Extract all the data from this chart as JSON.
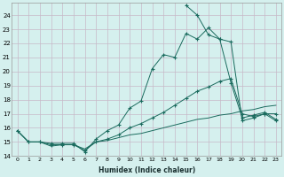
{
  "xlabel": "Humidex (Indice chaleur)",
  "xlim": [
    -0.5,
    23.5
  ],
  "ylim": [
    14,
    24.9
  ],
  "yticks": [
    14,
    15,
    16,
    17,
    18,
    19,
    20,
    21,
    22,
    23,
    24
  ],
  "xticks": [
    0,
    1,
    2,
    3,
    4,
    5,
    6,
    7,
    8,
    9,
    10,
    11,
    12,
    13,
    14,
    15,
    16,
    17,
    18,
    19,
    20,
    21,
    22,
    23
  ],
  "background_color": "#d5f0ee",
  "grid_color": "#c8b8c8",
  "line_color": "#1a6b5e",
  "lines": [
    {
      "x": [
        0,
        1,
        2,
        3,
        4,
        5,
        6,
        7,
        8,
        9,
        10,
        11,
        12,
        13,
        14,
        15,
        16,
        17,
        18,
        19,
        20,
        21,
        22,
        23
      ],
      "y": [
        15.8,
        15.0,
        15.0,
        14.7,
        14.8,
        14.8,
        14.5,
        15.0,
        15.1,
        15.3,
        15.5,
        15.6,
        15.8,
        16.0,
        16.2,
        16.4,
        16.6,
        16.7,
        16.9,
        17.0,
        17.2,
        17.3,
        17.5,
        17.6
      ],
      "has_marker": false
    },
    {
      "x": [
        0,
        1,
        2,
        3,
        4,
        5,
        6,
        7,
        8,
        9,
        10,
        11,
        12,
        13,
        14,
        15,
        16,
        17,
        18,
        19,
        20,
        21,
        22,
        23
      ],
      "y": [
        15.8,
        15.0,
        15.0,
        14.8,
        14.8,
        14.8,
        14.4,
        15.0,
        15.2,
        15.5,
        16.0,
        16.3,
        16.7,
        17.1,
        17.6,
        18.1,
        18.6,
        18.9,
        19.3,
        19.5,
        17.0,
        16.8,
        17.0,
        17.0
      ],
      "has_marker": true
    },
    {
      "x": [
        0,
        1,
        2,
        3,
        4,
        5,
        6,
        7,
        8,
        9,
        10,
        11,
        12,
        13,
        14,
        15,
        16,
        17,
        18,
        19,
        20,
        21,
        22,
        23
      ],
      "y": [
        15.8,
        15.0,
        15.0,
        14.9,
        14.9,
        14.9,
        14.3,
        15.2,
        15.8,
        16.2,
        17.4,
        17.9,
        20.2,
        21.2,
        21.0,
        22.7,
        22.3,
        23.1,
        22.3,
        19.2,
        16.7,
        16.9,
        17.1,
        16.6
      ],
      "has_marker": true
    },
    {
      "x": [
        15,
        16,
        17,
        18,
        19,
        20,
        21,
        22,
        23
      ],
      "y": [
        24.7,
        24.0,
        22.6,
        22.3,
        22.1,
        16.5,
        16.7,
        17.0,
        16.5
      ],
      "has_marker": true
    }
  ]
}
